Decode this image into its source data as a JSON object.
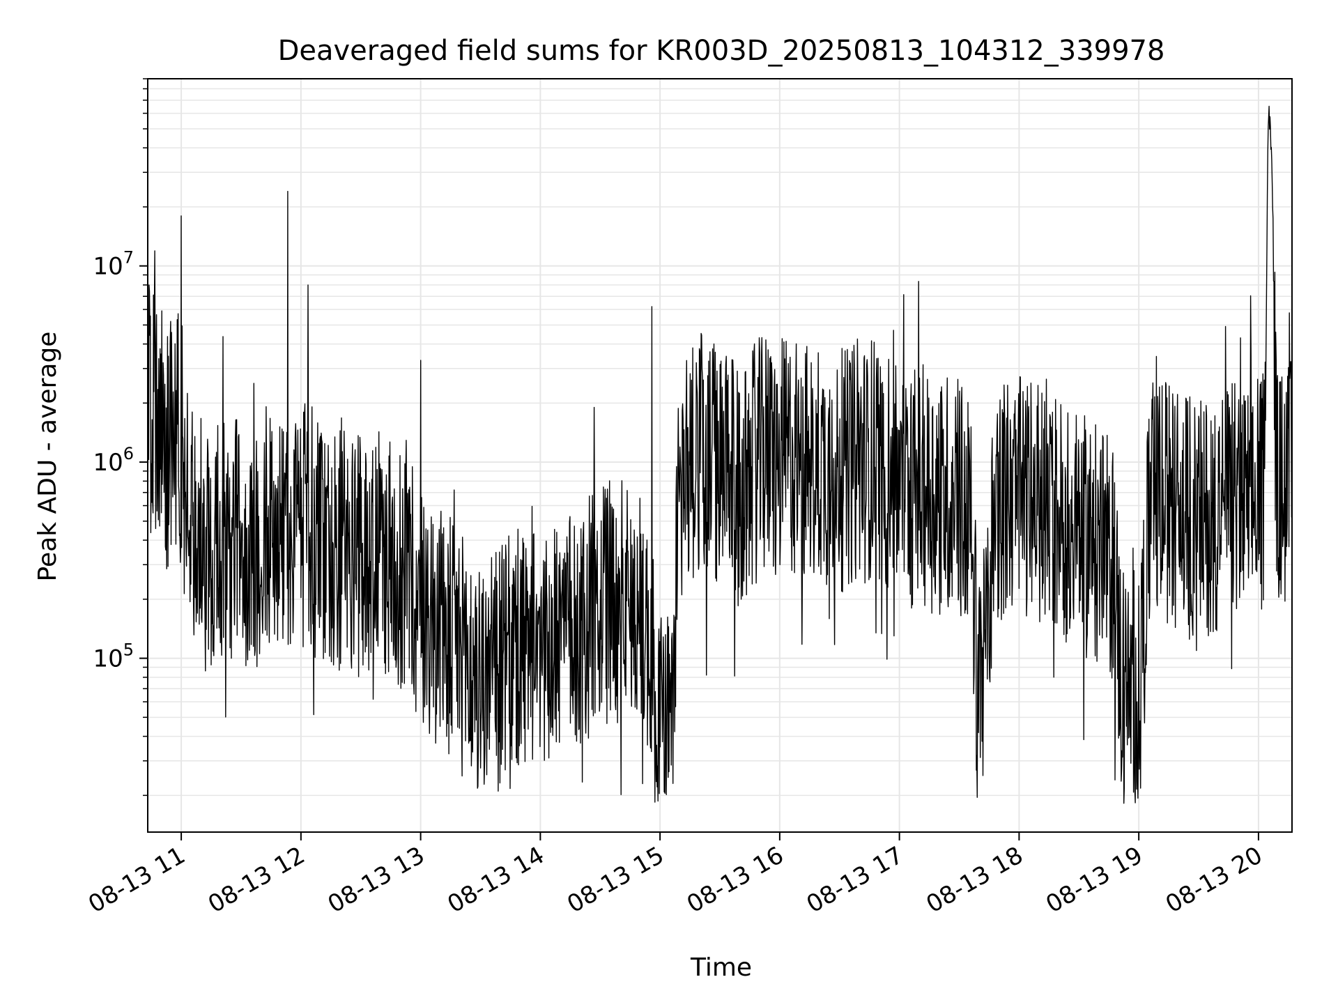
{
  "chart_data": {
    "type": "line",
    "title": "Deaveraged field sums for KR003D_20250813_104312_339978",
    "xlabel": "Time",
    "ylabel": "Peak ADU - average",
    "yscale": "log",
    "grid": true,
    "line_color": "#000000",
    "grid_color": "#e6e6e6",
    "x_tick_labels": [
      "08-13 11",
      "08-13 12",
      "08-13 13",
      "08-13 14",
      "08-13 15",
      "08-13 16",
      "08-13 17",
      "08-13 18",
      "08-13 19",
      "08-13 20"
    ],
    "x_tick_hours": [
      11,
      12,
      13,
      14,
      15,
      16,
      17,
      18,
      19,
      20
    ],
    "y_tick_labels": [
      {
        "base": "10",
        "exp": "5",
        "value": 100000
      },
      {
        "base": "10",
        "exp": "6",
        "value": 1000000
      },
      {
        "base": "10",
        "exp": "7",
        "value": 10000000
      }
    ],
    "xlim_hours": [
      10.72,
      20.28
    ],
    "ylim": [
      13000,
      90000000
    ],
    "series": [
      {
        "x_hours": [
          10.72,
          10.75,
          10.78,
          10.82,
          10.85,
          10.88,
          10.92,
          10.95,
          10.98,
          11.0,
          11.1,
          11.2,
          11.3,
          11.4,
          11.5,
          11.6,
          11.7,
          11.8,
          11.9,
          12.0,
          12.05,
          12.1,
          12.2,
          12.3,
          12.4,
          12.5,
          12.6,
          12.7,
          12.8,
          12.9,
          13.0,
          13.1,
          13.2,
          13.3,
          13.4,
          13.5,
          13.6,
          13.7,
          13.8,
          13.9,
          14.0,
          14.1,
          14.2,
          14.3,
          14.4,
          14.5,
          14.6,
          14.7,
          14.8,
          14.9,
          14.95,
          15.0,
          15.05,
          15.1,
          15.15,
          15.2,
          15.3,
          15.4,
          15.5,
          15.6,
          15.7,
          15.8,
          15.9,
          16.0,
          16.1,
          16.2,
          16.3,
          16.4,
          16.5,
          16.6,
          16.7,
          16.8,
          16.9,
          17.0,
          17.1,
          17.2,
          17.3,
          17.4,
          17.5,
          17.6,
          17.65,
          17.7,
          17.8,
          17.9,
          18.0,
          18.1,
          18.2,
          18.3,
          18.4,
          18.5,
          18.6,
          18.7,
          18.8,
          18.85,
          18.9,
          19.0,
          19.1,
          19.2,
          19.3,
          19.4,
          19.5,
          19.6,
          19.7,
          19.8,
          19.9,
          20.0,
          20.05,
          20.08,
          20.1,
          20.12,
          20.15,
          20.2,
          20.28
        ],
        "values": [
          2200000,
          1600000,
          2000000,
          1300000,
          1800000,
          1100000,
          1500000,
          1200000,
          2000000,
          800000,
          450000,
          350000,
          420000,
          380000,
          400000,
          350000,
          420000,
          450000,
          400000,
          420000,
          500000,
          450000,
          400000,
          350000,
          380000,
          320000,
          350000,
          330000,
          300000,
          250000,
          180000,
          160000,
          140000,
          120000,
          90000,
          75000,
          80000,
          95000,
          110000,
          100000,
          120000,
          110000,
          150000,
          140000,
          160000,
          180000,
          200000,
          190000,
          180000,
          130000,
          70000,
          50000,
          45000,
          40000,
          600000,
          900000,
          1200000,
          1100000,
          900000,
          800000,
          700000,
          1000000,
          1100000,
          1000000,
          1100000,
          1000000,
          1000000,
          950000,
          900000,
          950000,
          1000000,
          1100000,
          900000,
          800000,
          750000,
          750000,
          700000,
          700000,
          650000,
          500000,
          80000,
          90000,
          600000,
          700000,
          650000,
          650000,
          600000,
          550000,
          500000,
          450000,
          400000,
          350000,
          300000,
          80000,
          60000,
          70000,
          600000,
          650000,
          600000,
          550000,
          500000,
          550000,
          600000,
          650000,
          600000,
          650000,
          700000,
          60000000,
          55000000,
          20000000,
          700000,
          750000,
          800000
        ]
      }
    ],
    "spikes": [
      {
        "x_hour": 11.0,
        "value": 18000000
      },
      {
        "x_hour": 11.89,
        "value": 24000000
      },
      {
        "x_hour": 12.06,
        "value": 8000000
      },
      {
        "x_hour": 13.0,
        "value": 3300000
      },
      {
        "x_hour": 14.45,
        "value": 1900000
      },
      {
        "x_hour": 14.93,
        "value": 6200000
      },
      {
        "x_hour": 15.45,
        "value": 4000000
      },
      {
        "x_hour": 16.95,
        "value": 4700000
      },
      {
        "x_hour": 19.85,
        "value": 4300000
      }
    ]
  }
}
